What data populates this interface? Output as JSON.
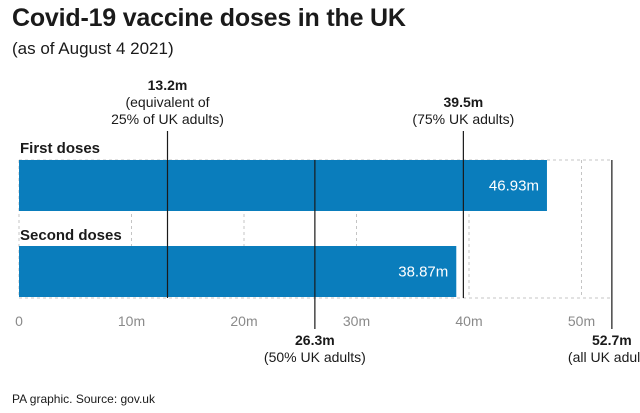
{
  "title": "Covid-19 vaccine doses in the UK",
  "subtitle": "(as of August 4 2021)",
  "source": "PA graphic. Source: gov.uk",
  "colors": {
    "bar": "#0a7dbc",
    "text": "#1a1a1a",
    "axis": "#8a8a8a"
  },
  "chart_data": {
    "type": "bar",
    "orientation": "horizontal",
    "categories": [
      "First doses",
      "Second doses"
    ],
    "values": [
      46.93,
      38.87
    ],
    "value_labels": [
      "46.93m",
      "38.87m"
    ],
    "xlim": [
      0,
      52.7
    ],
    "x_ticks": [
      0,
      10,
      20,
      30,
      40,
      50
    ],
    "x_tick_labels": [
      "0",
      "10m",
      "20m",
      "30m",
      "40m",
      "50m"
    ],
    "grid": "dashed vertical",
    "reference_lines": [
      {
        "value": 13.2,
        "position": "top",
        "label_bold": "13.2m",
        "label_lines": [
          "(equivalent of",
          "25% of UK adults)"
        ]
      },
      {
        "value": 39.5,
        "position": "top",
        "label_bold": "39.5m",
        "label_lines": [
          "(75% UK adults)"
        ]
      },
      {
        "value": 26.3,
        "position": "bottom",
        "label_bold": "26.3m",
        "label_lines": [
          "(50% UK adults)"
        ]
      },
      {
        "value": 52.7,
        "position": "bottom",
        "label_bold": "52.7m",
        "label_lines": [
          "(all UK adults)"
        ]
      }
    ]
  }
}
